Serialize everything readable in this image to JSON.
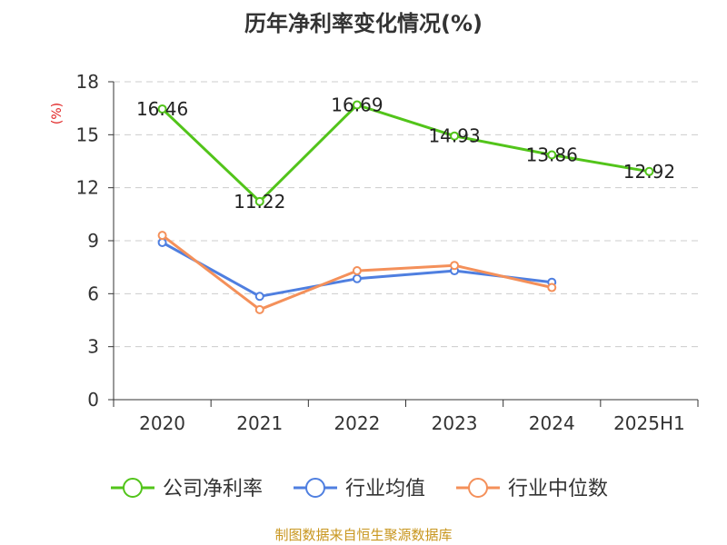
{
  "colors": {
    "company": "#52c41a",
    "industry_avg": "#4f7fe0",
    "industry_median": "#f4905a",
    "grid": "#cccccc",
    "axis": "#333333"
  },
  "source_text": "制图数据来自恒生聚源数据库",
  "chart_data": {
    "type": "line",
    "title": "历年净利率变化情况(%)",
    "xlabel": "",
    "ylabel": "(%)",
    "ylim": [
      0,
      18
    ],
    "yticks": [
      0,
      3,
      6,
      9,
      12,
      15,
      18
    ],
    "grid": true,
    "legend_position": "bottom",
    "categories": [
      "2020",
      "2021",
      "2022",
      "2023",
      "2024",
      "2025H1"
    ],
    "series": [
      {
        "name": "公司净利率",
        "color_key": "company",
        "values": [
          16.46,
          11.22,
          16.69,
          14.93,
          13.86,
          12.92
        ],
        "labels": [
          "16.46",
          "11.22",
          "16.69",
          "14.93",
          "13.86",
          "12.92"
        ]
      },
      {
        "name": "行业均值",
        "color_key": "industry_avg",
        "values": [
          8.9,
          5.85,
          6.85,
          7.3,
          6.65,
          null
        ]
      },
      {
        "name": "行业中位数",
        "color_key": "industry_median",
        "values": [
          9.3,
          5.1,
          7.3,
          7.6,
          6.35,
          null
        ]
      }
    ]
  }
}
